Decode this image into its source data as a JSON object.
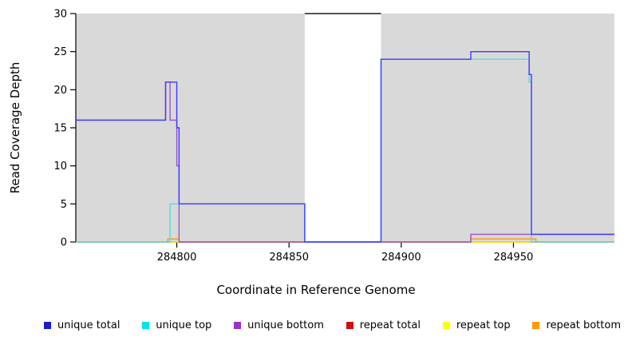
{
  "chart_data": {
    "type": "line",
    "subtype": "step-coverage",
    "title": "",
    "xlabel": "Coordinate in Reference Genome",
    "ylabel": "Read Coverage Depth",
    "xlim": [
      284755,
      284995
    ],
    "ylim": [
      0,
      30
    ],
    "x_ticks": [
      284800,
      284850,
      284900,
      284950
    ],
    "y_ticks": [
      0,
      5,
      10,
      15,
      20,
      25,
      30
    ],
    "grid": "off",
    "background": {
      "shaded_color": "#d9d9d9",
      "shaded_regions": [
        [
          284755,
          284857
        ],
        [
          284891,
          284995
        ]
      ],
      "gap_region": [
        284857,
        284891
      ],
      "gap_top_line_color": "#1a1a1a"
    },
    "series": [
      {
        "name": "repeat total",
        "color": "#dd2222",
        "step_points": [
          [
            284755,
            0
          ],
          [
            284995,
            0
          ]
        ]
      },
      {
        "name": "repeat top",
        "color": "#ffff00",
        "step_points": [
          [
            284755,
            0
          ],
          [
            284995,
            0
          ]
        ]
      },
      {
        "name": "repeat bottom",
        "color": "#ff9900",
        "step_points": [
          [
            284755,
            0
          ],
          [
            284796,
            0.4
          ],
          [
            284801,
            0
          ],
          [
            284931,
            0.4
          ],
          [
            284960,
            0
          ],
          [
            284995,
            0
          ]
        ]
      },
      {
        "name": "unique bottom",
        "color": "#9955cc",
        "step_points": [
          [
            284755,
            16
          ],
          [
            284795,
            21
          ],
          [
            284797,
            16
          ],
          [
            284800,
            10
          ],
          [
            284801,
            0
          ],
          [
            284931,
            1
          ],
          [
            284995,
            1
          ]
        ]
      },
      {
        "name": "unique top",
        "color": "#55dede",
        "step_points": [
          [
            284755,
            0
          ],
          [
            284797,
            5
          ],
          [
            284857,
            0
          ],
          [
            284891,
            24
          ],
          [
            284957,
            21
          ],
          [
            284958,
            0
          ],
          [
            284995,
            0
          ]
        ]
      },
      {
        "name": "unique total",
        "color": "#3c3cff",
        "step_points": [
          [
            284755,
            16
          ],
          [
            284795,
            21
          ],
          [
            284800,
            15
          ],
          [
            284801,
            5
          ],
          [
            284857,
            0
          ],
          [
            284891,
            24
          ],
          [
            284931,
            25
          ],
          [
            284957,
            22
          ],
          [
            284958,
            1
          ],
          [
            284995,
            1
          ]
        ]
      }
    ],
    "legend_position": "bottom"
  },
  "legend": {
    "items": [
      {
        "label": "unique total",
        "color": "#1c1ccd"
      },
      {
        "label": "unique top",
        "color": "#00e5e5"
      },
      {
        "label": "unique bottom",
        "color": "#9932cc"
      },
      {
        "label": "repeat total",
        "color": "#cc1111"
      },
      {
        "label": "repeat top",
        "color": "#ffff00"
      },
      {
        "label": "repeat bottom",
        "color": "#ff9900"
      }
    ]
  }
}
